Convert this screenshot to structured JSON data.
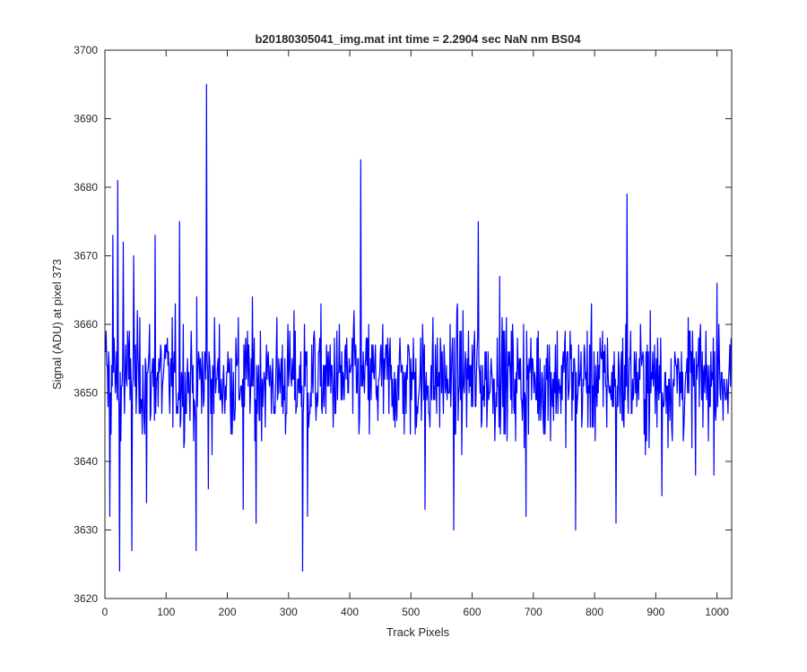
{
  "chart_data": {
    "type": "line",
    "title": "b20180305041_img.mat int time = 2.2904 sec  NaN nm BS04",
    "xlabel": "Track Pixels",
    "ylabel": "Signal (ADU) at pixel 373",
    "xlim": [
      0,
      1024
    ],
    "ylim": [
      3620,
      3700
    ],
    "xticks": [
      "0",
      "100",
      "200",
      "300",
      "400",
      "500",
      "600",
      "700",
      "800",
      "900",
      "1000"
    ],
    "yticks": [
      "3620",
      "3630",
      "3640",
      "3650",
      "3660",
      "3670",
      "3680",
      "3690",
      "3700"
    ],
    "grid": false,
    "legend": "none",
    "color": "#0000ff",
    "noise_summary": {
      "points": 1024,
      "mean": 3652,
      "typical_low": 3638,
      "typical_high": 3666
    },
    "notable_points": [
      {
        "x": 2,
        "y": 3659
      },
      {
        "x": 8,
        "y": 3632
      },
      {
        "x": 13,
        "y": 3673
      },
      {
        "x": 21,
        "y": 3681
      },
      {
        "x": 24,
        "y": 3624
      },
      {
        "x": 30,
        "y": 3672
      },
      {
        "x": 44,
        "y": 3627
      },
      {
        "x": 47,
        "y": 3670
      },
      {
        "x": 68,
        "y": 3634
      },
      {
        "x": 82,
        "y": 3673
      },
      {
        "x": 122,
        "y": 3675
      },
      {
        "x": 149,
        "y": 3627
      },
      {
        "x": 166,
        "y": 3695
      },
      {
        "x": 169,
        "y": 3636
      },
      {
        "x": 226,
        "y": 3633
      },
      {
        "x": 247,
        "y": 3631
      },
      {
        "x": 323,
        "y": 3624
      },
      {
        "x": 331,
        "y": 3632
      },
      {
        "x": 418,
        "y": 3684
      },
      {
        "x": 523,
        "y": 3633
      },
      {
        "x": 570,
        "y": 3630
      },
      {
        "x": 610,
        "y": 3675
      },
      {
        "x": 645,
        "y": 3667
      },
      {
        "x": 688,
        "y": 3632
      },
      {
        "x": 769,
        "y": 3630
      },
      {
        "x": 835,
        "y": 3631
      },
      {
        "x": 853,
        "y": 3679
      },
      {
        "x": 910,
        "y": 3635
      },
      {
        "x": 965,
        "y": 3638
      },
      {
        "x": 1000,
        "y": 3666
      }
    ]
  }
}
